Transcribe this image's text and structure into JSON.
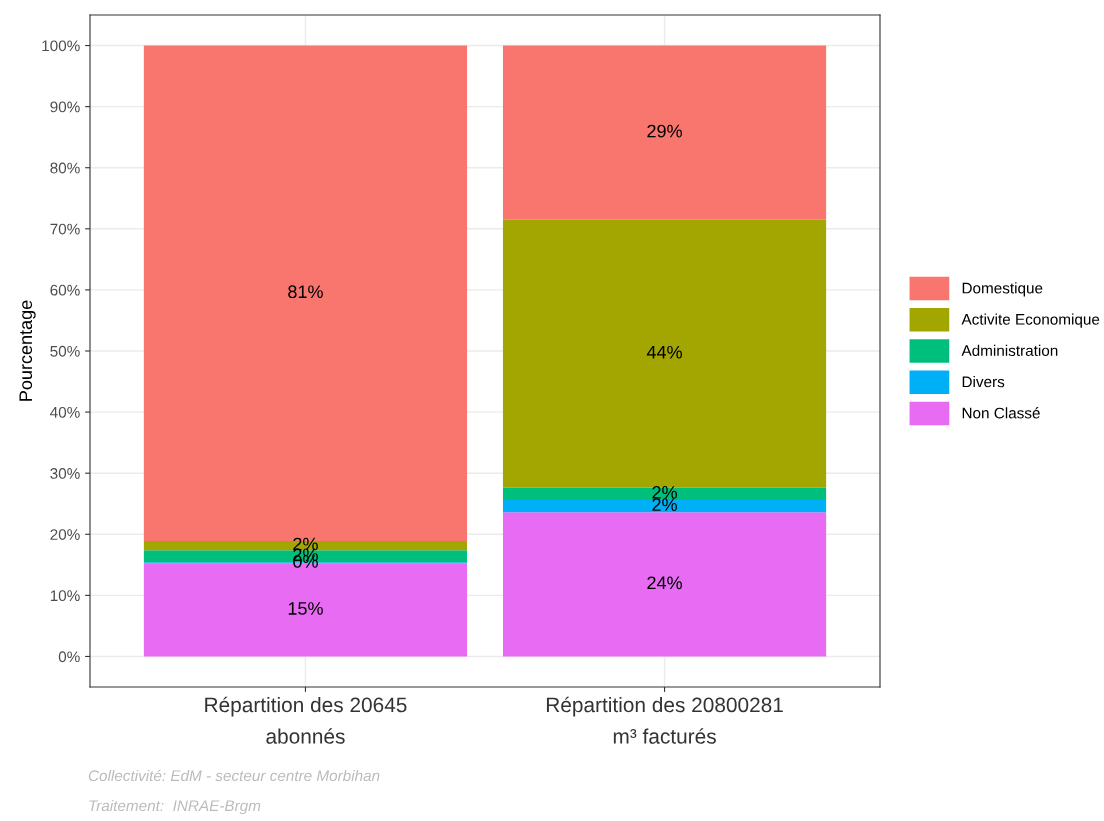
{
  "chart_data": {
    "type": "bar",
    "stacked": true,
    "ylabel": "Pourcentage",
    "categories": [
      "Répartition des 20645\nabonnés",
      "Répartition des 20800281\nm³ facturés"
    ],
    "series": [
      {
        "name": "Non Classé",
        "color": "#e76bf3",
        "values": [
          15.2,
          23.6
        ],
        "value_labels": [
          "15%",
          "24%"
        ]
      },
      {
        "name": "Divers",
        "color": "#00b0f6",
        "values": [
          0.2,
          2.0
        ],
        "value_labels": [
          "0%",
          "2%"
        ]
      },
      {
        "name": "Administration",
        "color": "#00bf7d",
        "values": [
          2.0,
          2.0
        ],
        "value_labels": [
          "2%",
          "2%"
        ]
      },
      {
        "name": "Activite Economique",
        "color": "#a3a500",
        "values": [
          1.5,
          43.9
        ],
        "value_labels": [
          "2%",
          "44%"
        ]
      },
      {
        "name": "Domestique",
        "color": "#f8766d",
        "values": [
          81.1,
          28.5
        ],
        "value_labels": [
          "81%",
          "29%"
        ]
      }
    ],
    "ylim": [
      -5,
      105
    ],
    "yticks": [
      {
        "value": 0,
        "label": "0%"
      },
      {
        "value": 10,
        "label": "10%"
      },
      {
        "value": 20,
        "label": "20%"
      },
      {
        "value": 30,
        "label": "30%"
      },
      {
        "value": 40,
        "label": "40%"
      },
      {
        "value": 50,
        "label": "50%"
      },
      {
        "value": 60,
        "label": "60%"
      },
      {
        "value": 70,
        "label": "70%"
      },
      {
        "value": 80,
        "label": "80%"
      },
      {
        "value": 90,
        "label": "90%"
      },
      {
        "value": 100,
        "label": "100%"
      }
    ],
    "grid": true,
    "legend": "right",
    "annotations": [
      "Collectivité: EdM - secteur centre Morbihan",
      "Traitement:  INRAE-Brgm"
    ]
  }
}
